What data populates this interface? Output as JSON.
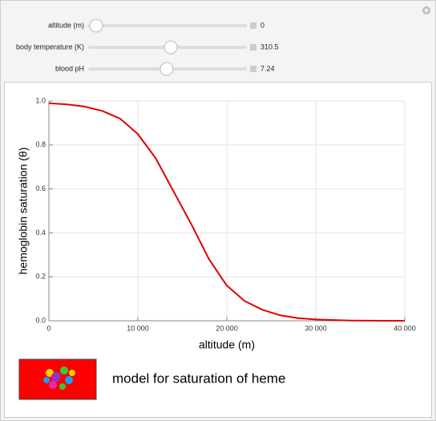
{
  "controls": [
    {
      "label": "altitude (m)",
      "value": "0"
    },
    {
      "label": "body temperature (K)",
      "value": "310.5"
    },
    {
      "label": "blood pH",
      "value": "7.24"
    }
  ],
  "chart_data": {
    "type": "line",
    "x_label": "altitude (m)",
    "y_label": "hemoglobin saturation (θ)",
    "x": [
      0,
      2000,
      4000,
      6000,
      8000,
      10000,
      12000,
      14000,
      16000,
      18000,
      20000,
      22000,
      24000,
      26000,
      28000,
      30000,
      32000,
      34000,
      36000,
      38000,
      40000
    ],
    "values": [
      0.99,
      0.985,
      0.975,
      0.955,
      0.92,
      0.85,
      0.74,
      0.59,
      0.44,
      0.28,
      0.16,
      0.09,
      0.05,
      0.025,
      0.012,
      0.006,
      0.003,
      0.001,
      0.0005,
      0.0002,
      0.0001
    ],
    "color": "#e00000",
    "xlim": [
      0,
      40000
    ],
    "ylim": [
      0,
      1
    ],
    "xticks": [
      0,
      {
        "value": 10000,
        "label": "10 000"
      },
      {
        "value": 20000,
        "label": "20 000"
      },
      {
        "value": 30000,
        "label": "30 000"
      },
      {
        "value": 40000,
        "label": "40 000"
      }
    ],
    "yticks": [
      {
        "value": 0,
        "label": "0.0"
      },
      0.2,
      0.4,
      0.6,
      0.8,
      {
        "value": 1,
        "label": "1.0"
      }
    ],
    "grid": true
  },
  "caption": "model for saturation of heme"
}
